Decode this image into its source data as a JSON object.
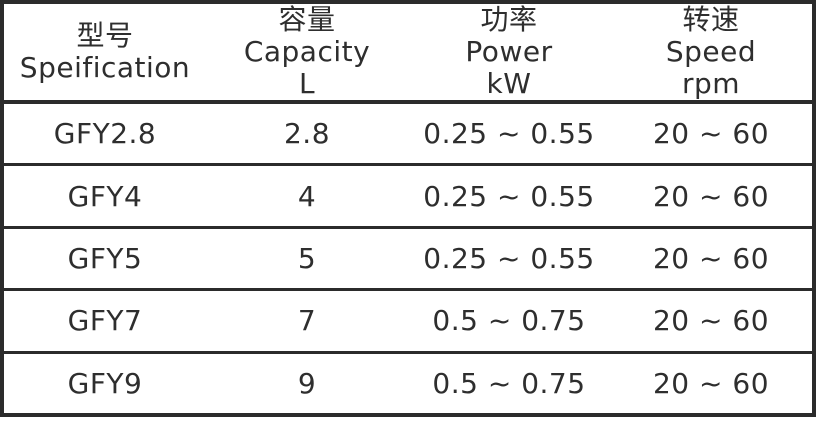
{
  "colors": {
    "ink": "#2b2b2b",
    "text": "#2e2e2e",
    "background": "#ffffff"
  },
  "table": {
    "columns": [
      {
        "zh": "型号",
        "en": "Speification",
        "unit": ""
      },
      {
        "zh": "容量",
        "en": "Capacity",
        "unit": "L"
      },
      {
        "zh": "功率",
        "en": "Power",
        "unit": "kW"
      },
      {
        "zh": "转速",
        "en": "Speed",
        "unit": "rpm"
      }
    ],
    "rows": [
      {
        "model": "GFY2.8",
        "capacity": "2.8",
        "power": "0.25 ~ 0.55",
        "speed": "20 ~ 60"
      },
      {
        "model": "GFY4",
        "capacity": "4",
        "power": "0.25 ~ 0.55",
        "speed": "20 ~ 60"
      },
      {
        "model": "GFY5",
        "capacity": "5",
        "power": "0.25 ~ 0.55",
        "speed": "20 ~ 60"
      },
      {
        "model": "GFY7",
        "capacity": "7",
        "power": "0.5 ~ 0.75",
        "speed": "20 ~ 60"
      },
      {
        "model": "GFY9",
        "capacity": "9",
        "power": "0.5 ~ 0.75",
        "speed": "20 ~ 60"
      }
    ]
  }
}
